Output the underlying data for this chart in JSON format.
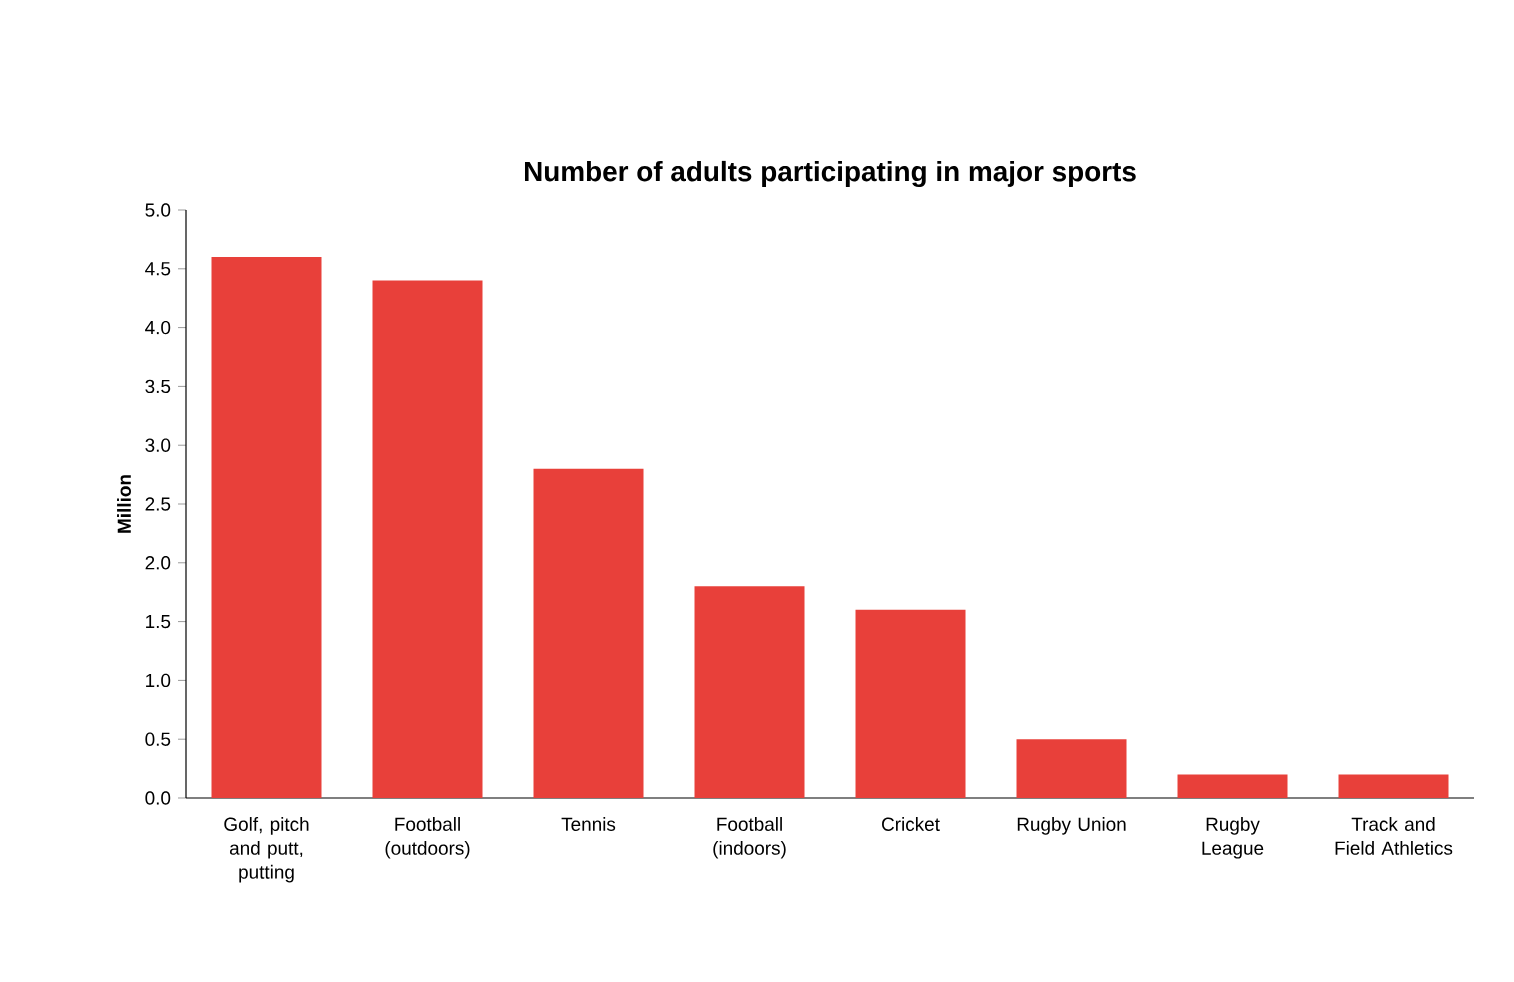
{
  "chart_data": {
    "type": "bar",
    "title": "Number of adults participating in major sports",
    "ylabel": "Million",
    "categories": [
      "Golf, pitch and putt, putting",
      "Football (outdoors)",
      "Tennis",
      "Football (indoors)",
      "Cricket",
      "Rugby Union",
      "Rugby League",
      "Track and Field Athletics"
    ],
    "values": [
      4.6,
      4.4,
      2.8,
      1.8,
      1.6,
      0.5,
      0.2,
      0.2
    ],
    "color": "#e8403a",
    "ylim": [
      0,
      5
    ],
    "yticks": [
      {
        "value": 0,
        "label": "0.0"
      },
      {
        "value": 0.5,
        "label": "0.5"
      },
      {
        "value": 1,
        "label": "1.0"
      },
      {
        "value": 1.5,
        "label": "1.5"
      },
      {
        "value": 2,
        "label": "2.0"
      },
      {
        "value": 2.5,
        "label": "2.5"
      },
      {
        "value": 3,
        "label": "3.0"
      },
      {
        "value": 3.5,
        "label": "3.5"
      },
      {
        "value": 4,
        "label": "4.0"
      },
      {
        "value": 4.5,
        "label": "4.5"
      },
      {
        "value": 5,
        "label": "5.0"
      }
    ],
    "grid": false
  }
}
